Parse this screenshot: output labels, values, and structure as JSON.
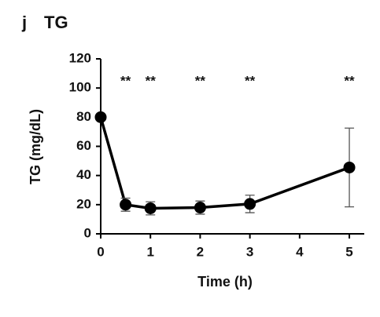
{
  "chart_data": {
    "type": "line",
    "panel_label": "j",
    "title": "TG",
    "x_label": "Time (h)",
    "y_label": "TG (mg/dL)",
    "x": [
      0,
      0.5,
      1,
      2,
      3,
      5
    ],
    "series": [
      {
        "name": "TG",
        "color": "#000000",
        "values": [
          80,
          20,
          17.5,
          18,
          20.5,
          45.5
        ],
        "errors": [
          0,
          4.5,
          4.5,
          4.5,
          6,
          27
        ]
      }
    ],
    "significance_labels": [
      null,
      "**",
      "**",
      "**",
      "**",
      "**"
    ],
    "xlim": [
      0,
      5.3
    ],
    "xticks": [
      0,
      1,
      2,
      3,
      4,
      5
    ],
    "ylim": [
      0,
      120
    ],
    "yticks": [
      0,
      20,
      40,
      60,
      80,
      100,
      120
    ],
    "grid": false
  }
}
